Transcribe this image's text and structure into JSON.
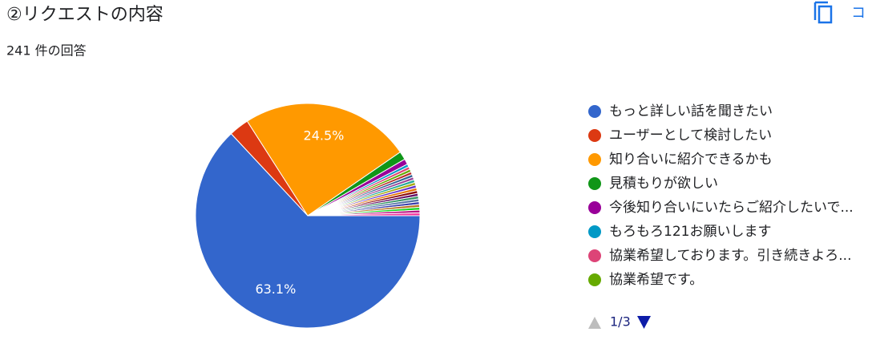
{
  "chart_data": {
    "type": "pie",
    "title": "②リクエストの内容",
    "subtitle": "241 件の回答",
    "copy_button": "コ",
    "pager": "1/3",
    "categories": [
      "もっと詳しい話を聞きたい",
      "ユーザーとして検討したい",
      "知り合いに紹介できるかも",
      "見積もりが欲しい",
      "今後知り合いにいたらご紹介したいで...",
      "もろもろ121お願いします",
      "協業希望しております。引き続きよろ...",
      "協業希望です。",
      null,
      null,
      null,
      null,
      null,
      null,
      null,
      null,
      null,
      null,
      null,
      null,
      null,
      null,
      null,
      null
    ],
    "values": [
      63.1,
      2.9,
      24.5,
      1.2,
      0.8,
      0.4,
      0.4,
      0.4,
      0.4,
      0.4,
      0.4,
      0.4,
      0.4,
      0.4,
      0.4,
      0.4,
      0.4,
      0.4,
      0.4,
      0.4,
      0.4,
      0.4,
      0.4,
      0.4
    ],
    "value_labels": [
      "63.1%",
      null,
      "24.5%",
      null,
      null,
      null,
      null,
      null,
      null,
      null,
      null,
      null,
      null,
      null,
      null,
      null,
      null,
      null,
      null,
      null,
      null,
      null,
      null,
      null
    ],
    "colors": [
      "#3366cc",
      "#dc3912",
      "#ff9900",
      "#109618",
      "#990099",
      "#0099c6",
      "#dd4477",
      "#66aa00",
      "#b82e2e",
      "#316395",
      "#994499",
      "#22aa99",
      "#aaaa11",
      "#6633cc",
      "#e67300",
      "#8b0707",
      "#651067",
      "#329262",
      "#5574a6",
      "#3b3eac",
      "#b77322",
      "#16d620",
      "#b91383",
      "#f4359e"
    ]
  }
}
